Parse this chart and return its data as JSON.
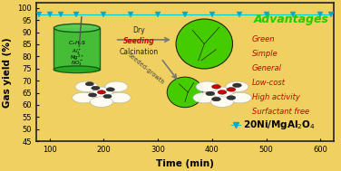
{
  "xlabel": "Time (min)",
  "ylabel": "Gas yield (%)",
  "background_color": "#f0d060",
  "plot_bg_color": "#f0d060",
  "xlim": [
    75,
    625
  ],
  "ylim": [
    45,
    102
  ],
  "yticks": [
    45,
    50,
    55,
    60,
    65,
    70,
    75,
    80,
    85,
    90,
    95,
    100
  ],
  "xticks": [
    100,
    200,
    300,
    400,
    500,
    600
  ],
  "line_x": [
    80,
    100,
    120,
    150,
    200,
    250,
    300,
    350,
    400,
    450,
    500,
    550,
    600,
    620
  ],
  "line_y": [
    97.5,
    97.5,
    97.5,
    97.5,
    97.5,
    97.5,
    97.5,
    97.5,
    97.5,
    97.5,
    97.5,
    97.5,
    97.5,
    97.5
  ],
  "line_color": "#00cccc",
  "marker_color": "#00aacc",
  "advantages_title": "Advantages",
  "advantages_title_color": "#22cc00",
  "advantages_list": [
    "Green",
    "Simple",
    "General",
    "Low-cost",
    "High activity",
    "Surfactant free"
  ],
  "advantages_color": "#cc0000",
  "border_color": "#222222",
  "beaker_color": "#33aa33",
  "green_ellipse_color": "#44bb00",
  "arrow_color": "#888888"
}
